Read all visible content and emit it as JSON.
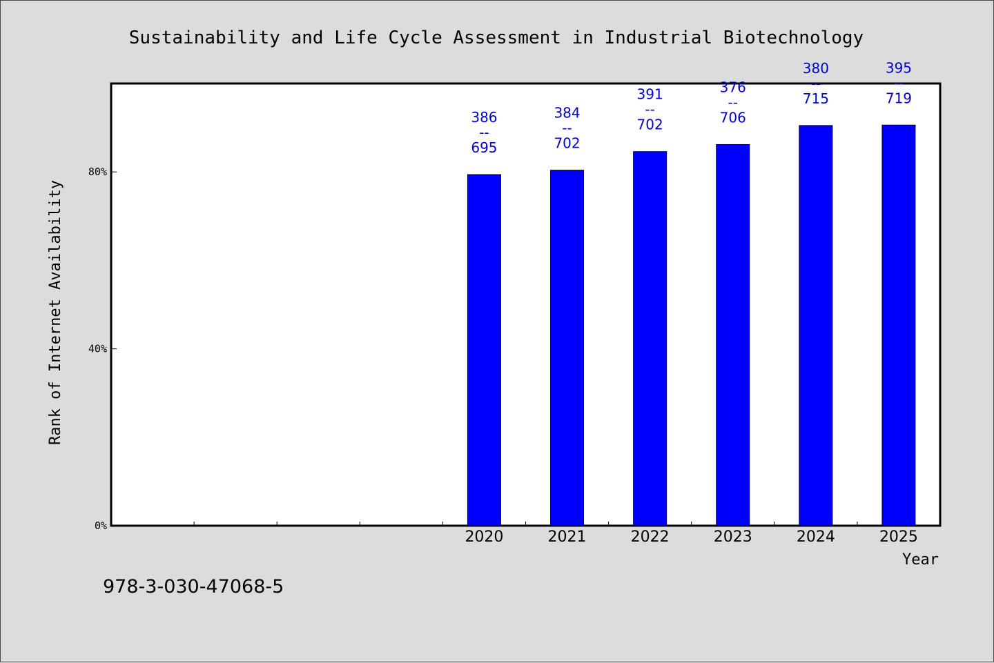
{
  "chart_data": {
    "type": "bar",
    "title": "Sustainability and Life Cycle Assessment in Industrial Biotechnology",
    "xlabel": "Year",
    "ylabel": "Rank of Internet Availability",
    "categories": [
      "",
      "",
      "",
      "",
      "2020",
      "2021",
      "2022",
      "2023",
      "2024",
      "2025"
    ],
    "values": [
      null,
      null,
      null,
      null,
      79.4,
      80.4,
      84.6,
      86.2,
      90.5,
      90.6
    ],
    "labels": [
      {
        "rank": "386",
        "sep": "--",
        "total": "695"
      },
      {
        "rank": "384",
        "sep": "--",
        "total": "702"
      },
      {
        "rank": "391",
        "sep": "--",
        "total": "702"
      },
      {
        "rank": "376",
        "sep": "--",
        "total": "706"
      },
      {
        "rank": "380",
        "sep": "--",
        "total": "715"
      },
      {
        "rank": "395",
        "sep": "--",
        "total": "719"
      }
    ],
    "yticks": [
      {
        "value": 0,
        "label": "0%"
      },
      {
        "value": 40,
        "label": "40%"
      },
      {
        "value": 80,
        "label": "80%"
      }
    ],
    "ylim": [
      0,
      100
    ],
    "grid": false,
    "bar_color": "#0000ff",
    "label_color": "#0000cc"
  },
  "footer": {
    "isbn": "978-3-030-47068-5"
  }
}
